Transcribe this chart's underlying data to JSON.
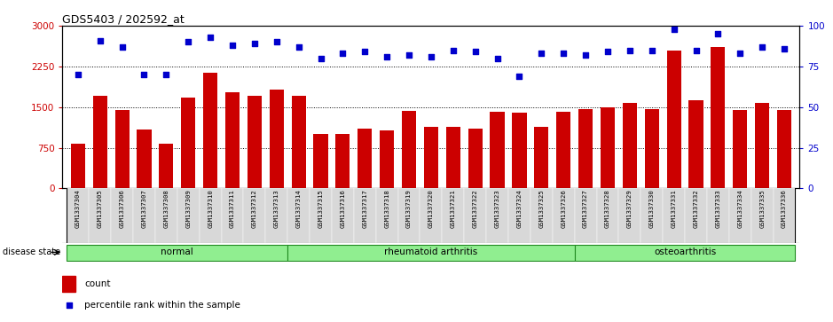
{
  "title": "GDS5403 / 202592_at",
  "samples": [
    "GSM1337304",
    "GSM1337305",
    "GSM1337306",
    "GSM1337307",
    "GSM1337308",
    "GSM1337309",
    "GSM1337310",
    "GSM1337311",
    "GSM1337312",
    "GSM1337313",
    "GSM1337314",
    "GSM1337315",
    "GSM1337316",
    "GSM1337317",
    "GSM1337318",
    "GSM1337319",
    "GSM1337320",
    "GSM1337321",
    "GSM1337322",
    "GSM1337323",
    "GSM1337324",
    "GSM1337325",
    "GSM1337326",
    "GSM1337327",
    "GSM1337328",
    "GSM1337329",
    "GSM1337330",
    "GSM1337331",
    "GSM1337332",
    "GSM1337333",
    "GSM1337334",
    "GSM1337335",
    "GSM1337336"
  ],
  "counts": [
    820,
    1700,
    1450,
    1080,
    820,
    1680,
    2130,
    1780,
    1710,
    1820,
    1700,
    1000,
    1000,
    1100,
    1070,
    1430,
    1130,
    1140,
    1110,
    1420,
    1390,
    1130,
    1420,
    1470,
    1500,
    1580,
    1470,
    2550,
    1620,
    2600,
    1440,
    1570,
    1440
  ],
  "percentiles": [
    70,
    91,
    87,
    70,
    70,
    90,
    93,
    88,
    89,
    90,
    87,
    80,
    83,
    84,
    81,
    82,
    81,
    85,
    84,
    80,
    69,
    83,
    83,
    82,
    84,
    85,
    85,
    98,
    85,
    95,
    83,
    87,
    86
  ],
  "groups": [
    {
      "label": "normal",
      "start": 0,
      "end": 10
    },
    {
      "label": "rheumatoid arthritis",
      "start": 10,
      "end": 23
    },
    {
      "label": "osteoarthritis",
      "start": 23,
      "end": 33
    }
  ],
  "bar_color": "#cc0000",
  "dot_color": "#0000cc",
  "ylim_left": [
    0,
    3000
  ],
  "ylim_right": [
    0,
    100
  ],
  "yticks_left": [
    0,
    750,
    1500,
    2250,
    3000
  ],
  "yticks_right": [
    0,
    25,
    50,
    75,
    100
  ],
  "group_color": "#90EE90",
  "group_border_color": "#228B22",
  "bar_width": 0.65
}
